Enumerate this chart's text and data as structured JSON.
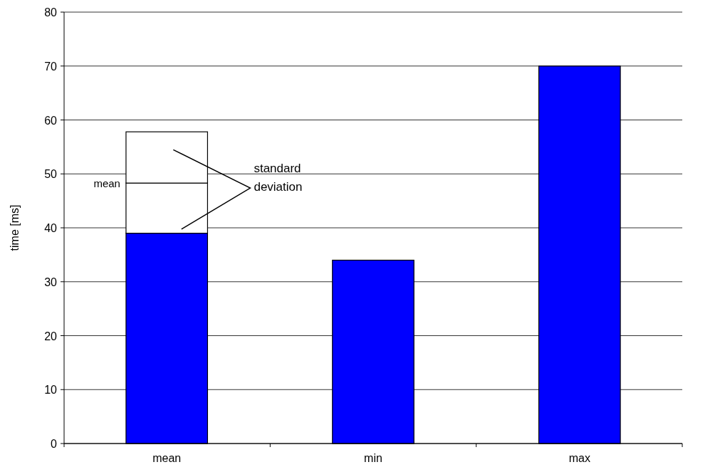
{
  "chart_data": {
    "type": "bar",
    "stacked": true,
    "ylabel": "time [ms]",
    "categories": [
      "mean",
      "min",
      "max"
    ],
    "series": [
      {
        "color": "#0000ff",
        "values": [
          39,
          34,
          70
        ]
      },
      {
        "color": "#ffffff",
        "values": [
          9.3,
          null,
          null
        ]
      },
      {
        "color": "#ffffff",
        "values": [
          9.5,
          null,
          null
        ]
      }
    ],
    "ylim": [
      0,
      80
    ],
    "yticks": [
      0,
      10,
      20,
      30,
      40,
      50,
      60,
      70,
      80
    ],
    "grid": "y",
    "annotations": [
      "mean",
      "standard deviation"
    ]
  }
}
